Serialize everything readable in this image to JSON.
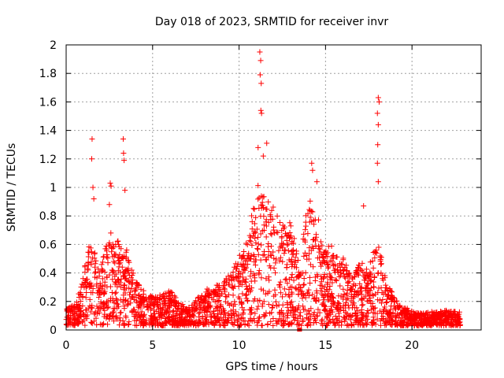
{
  "chart_data": {
    "type": "scatter",
    "title": "Day 018 of 2023, SRMTID for receiver invr",
    "xlabel": "GPS time / hours",
    "ylabel": "SRMTID / TECUs",
    "xlim": [
      0,
      24
    ],
    "ylim": [
      0,
      2
    ],
    "grid": true,
    "xticks": [
      0,
      5,
      10,
      15,
      20
    ],
    "yticks": [
      0,
      0.2,
      0.4,
      0.6,
      0.8,
      1,
      1.2,
      1.4,
      1.6,
      1.8,
      2
    ],
    "xtick_labels": [
      "0",
      "5",
      "10",
      "15",
      "20"
    ],
    "ytick_labels": [
      "0",
      "0.2",
      "0.4",
      "0.6",
      "0.8",
      "1",
      "1.2",
      "1.4",
      "1.6",
      "1.8",
      "2"
    ],
    "marker": "+",
    "color": "#ff0000",
    "envelope": {
      "x": [
        0,
        0.5,
        1,
        1.5,
        2,
        2.5,
        3,
        3.5,
        4,
        4.5,
        5,
        5.5,
        6,
        6.5,
        7,
        7.5,
        8,
        8.5,
        9,
        9.5,
        10,
        10.5,
        11,
        11.5,
        12,
        12.5,
        13,
        13.5,
        14,
        14.5,
        15,
        15.5,
        16,
        16.5,
        17,
        17.5,
        18,
        18.5,
        19,
        19.5,
        20,
        20.5,
        21,
        21.5,
        22,
        22.5,
        22.8
      ],
      "y": [
        0.12,
        0.15,
        0.35,
        0.6,
        0.45,
        0.65,
        0.55,
        0.5,
        0.32,
        0.25,
        0.2,
        0.22,
        0.25,
        0.18,
        0.12,
        0.18,
        0.25,
        0.28,
        0.3,
        0.35,
        0.45,
        0.55,
        0.9,
        0.85,
        0.75,
        0.7,
        0.65,
        0.45,
        0.85,
        0.75,
        0.55,
        0.5,
        0.45,
        0.35,
        0.45,
        0.38,
        0.6,
        0.3,
        0.2,
        0.14,
        0.1,
        0.09,
        0.1,
        0.1,
        0.11,
        0.1,
        0.1
      ]
    },
    "spikes": [
      {
        "x": 1.5,
        "y": 1.34
      },
      {
        "x": 1.48,
        "y": 1.2
      },
      {
        "x": 1.55,
        "y": 1.0
      },
      {
        "x": 1.6,
        "y": 0.92
      },
      {
        "x": 2.55,
        "y": 1.03
      },
      {
        "x": 2.6,
        "y": 1.01
      },
      {
        "x": 2.5,
        "y": 0.88
      },
      {
        "x": 3.3,
        "y": 1.34
      },
      {
        "x": 3.32,
        "y": 1.24
      },
      {
        "x": 3.35,
        "y": 1.19
      },
      {
        "x": 3.4,
        "y": 0.98
      },
      {
        "x": 11.2,
        "y": 1.95
      },
      {
        "x": 11.25,
        "y": 1.89
      },
      {
        "x": 11.22,
        "y": 1.79
      },
      {
        "x": 11.28,
        "y": 1.73
      },
      {
        "x": 11.26,
        "y": 1.54
      },
      {
        "x": 11.3,
        "y": 1.52
      },
      {
        "x": 11.6,
        "y": 1.31
      },
      {
        "x": 11.1,
        "y": 1.28
      },
      {
        "x": 11.4,
        "y": 1.22
      },
      {
        "x": 14.2,
        "y": 1.17
      },
      {
        "x": 14.25,
        "y": 1.12
      },
      {
        "x": 14.5,
        "y": 1.04
      },
      {
        "x": 18.05,
        "y": 1.63
      },
      {
        "x": 18.1,
        "y": 1.6
      },
      {
        "x": 18.0,
        "y": 1.52
      },
      {
        "x": 18.05,
        "y": 1.44
      },
      {
        "x": 18.02,
        "y": 1.3
      },
      {
        "x": 18.0,
        "y": 1.17
      },
      {
        "x": 18.05,
        "y": 1.04
      },
      {
        "x": 17.2,
        "y": 0.87
      },
      {
        "x": 13.45,
        "y": 0.0
      },
      {
        "x": 13.5,
        "y": 0.0
      }
    ]
  }
}
